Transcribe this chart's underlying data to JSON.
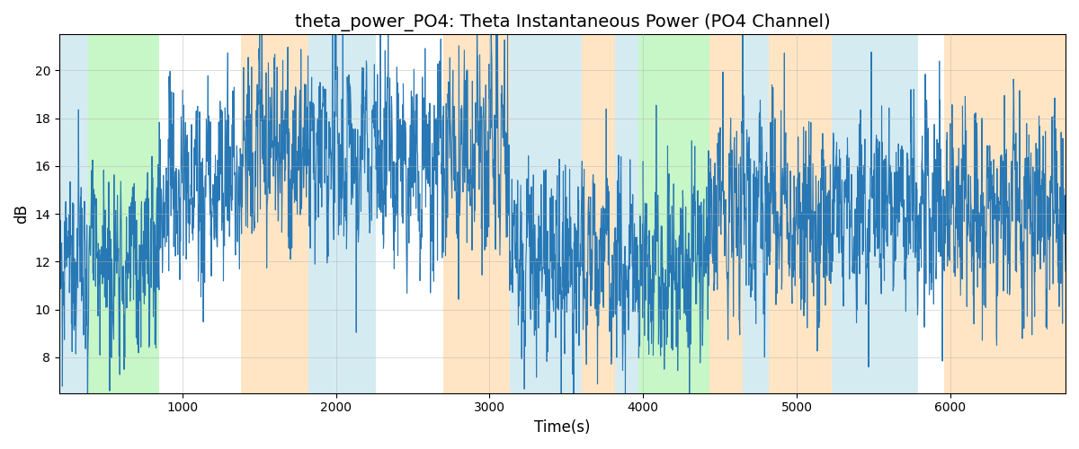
{
  "title": "theta_power_PO4: Theta Instantaneous Power (PO4 Channel)",
  "xlabel": "Time(s)",
  "ylabel": "dB",
  "xlim": [
    200,
    6750
  ],
  "ylim": [
    6.5,
    21.5
  ],
  "line_color": "#2878b5",
  "line_width": 0.8,
  "bg_bands": [
    {
      "xmin": 200,
      "xmax": 390,
      "color": "#add8e6",
      "alpha": 0.5
    },
    {
      "xmin": 390,
      "xmax": 850,
      "color": "#90ee90",
      "alpha": 0.5
    },
    {
      "xmin": 850,
      "xmax": 1380,
      "color": "#ffffff",
      "alpha": 0.0
    },
    {
      "xmin": 1380,
      "xmax": 1820,
      "color": "#ffd59e",
      "alpha": 0.6
    },
    {
      "xmin": 1820,
      "xmax": 2260,
      "color": "#add8e6",
      "alpha": 0.5
    },
    {
      "xmin": 2260,
      "xmax": 2700,
      "color": "#ffffff",
      "alpha": 0.0
    },
    {
      "xmin": 2700,
      "xmax": 3130,
      "color": "#ffd59e",
      "alpha": 0.6
    },
    {
      "xmin": 3130,
      "xmax": 3600,
      "color": "#add8e6",
      "alpha": 0.5
    },
    {
      "xmin": 3600,
      "xmax": 3820,
      "color": "#ffd59e",
      "alpha": 0.6
    },
    {
      "xmin": 3820,
      "xmax": 3970,
      "color": "#add8e6",
      "alpha": 0.5
    },
    {
      "xmin": 3970,
      "xmax": 4430,
      "color": "#90ee90",
      "alpha": 0.5
    },
    {
      "xmin": 4430,
      "xmax": 4650,
      "color": "#ffd59e",
      "alpha": 0.6
    },
    {
      "xmin": 4650,
      "xmax": 4820,
      "color": "#add8e6",
      "alpha": 0.5
    },
    {
      "xmin": 4820,
      "xmax": 5230,
      "color": "#ffd59e",
      "alpha": 0.6
    },
    {
      "xmin": 5230,
      "xmax": 5790,
      "color": "#add8e6",
      "alpha": 0.5
    },
    {
      "xmin": 5790,
      "xmax": 5960,
      "color": "#ffffff",
      "alpha": 0.0
    },
    {
      "xmin": 5960,
      "xmax": 6750,
      "color": "#ffd59e",
      "alpha": 0.6
    }
  ],
  "xticks": [
    1000,
    2000,
    3000,
    4000,
    5000,
    6000
  ],
  "yticks": [
    8,
    10,
    12,
    14,
    16,
    18,
    20
  ],
  "grid_color": "#b0b0b0",
  "grid_alpha": 0.6,
  "title_fontsize": 14,
  "figsize": [
    12.0,
    5.0
  ],
  "dpi": 100,
  "seed": 99,
  "n_points": 3000,
  "base_level": 13.5,
  "noise_std": 1.8,
  "segment_levels": [
    {
      "xmin": 200,
      "xmax": 850,
      "level": -1.5
    },
    {
      "xmin": 850,
      "xmax": 1380,
      "level": 1.5
    },
    {
      "xmin": 1380,
      "xmax": 2260,
      "level": 3.0
    },
    {
      "xmin": 2260,
      "xmax": 2700,
      "level": 2.5
    },
    {
      "xmin": 2700,
      "xmax": 3130,
      "level": 3.0
    },
    {
      "xmin": 3130,
      "xmax": 3820,
      "level": -1.5
    },
    {
      "xmin": 3820,
      "xmax": 4430,
      "level": -1.5
    },
    {
      "xmin": 4430,
      "xmax": 5230,
      "level": 0.5
    },
    {
      "xmin": 5230,
      "xmax": 6750,
      "level": 0.5
    }
  ]
}
